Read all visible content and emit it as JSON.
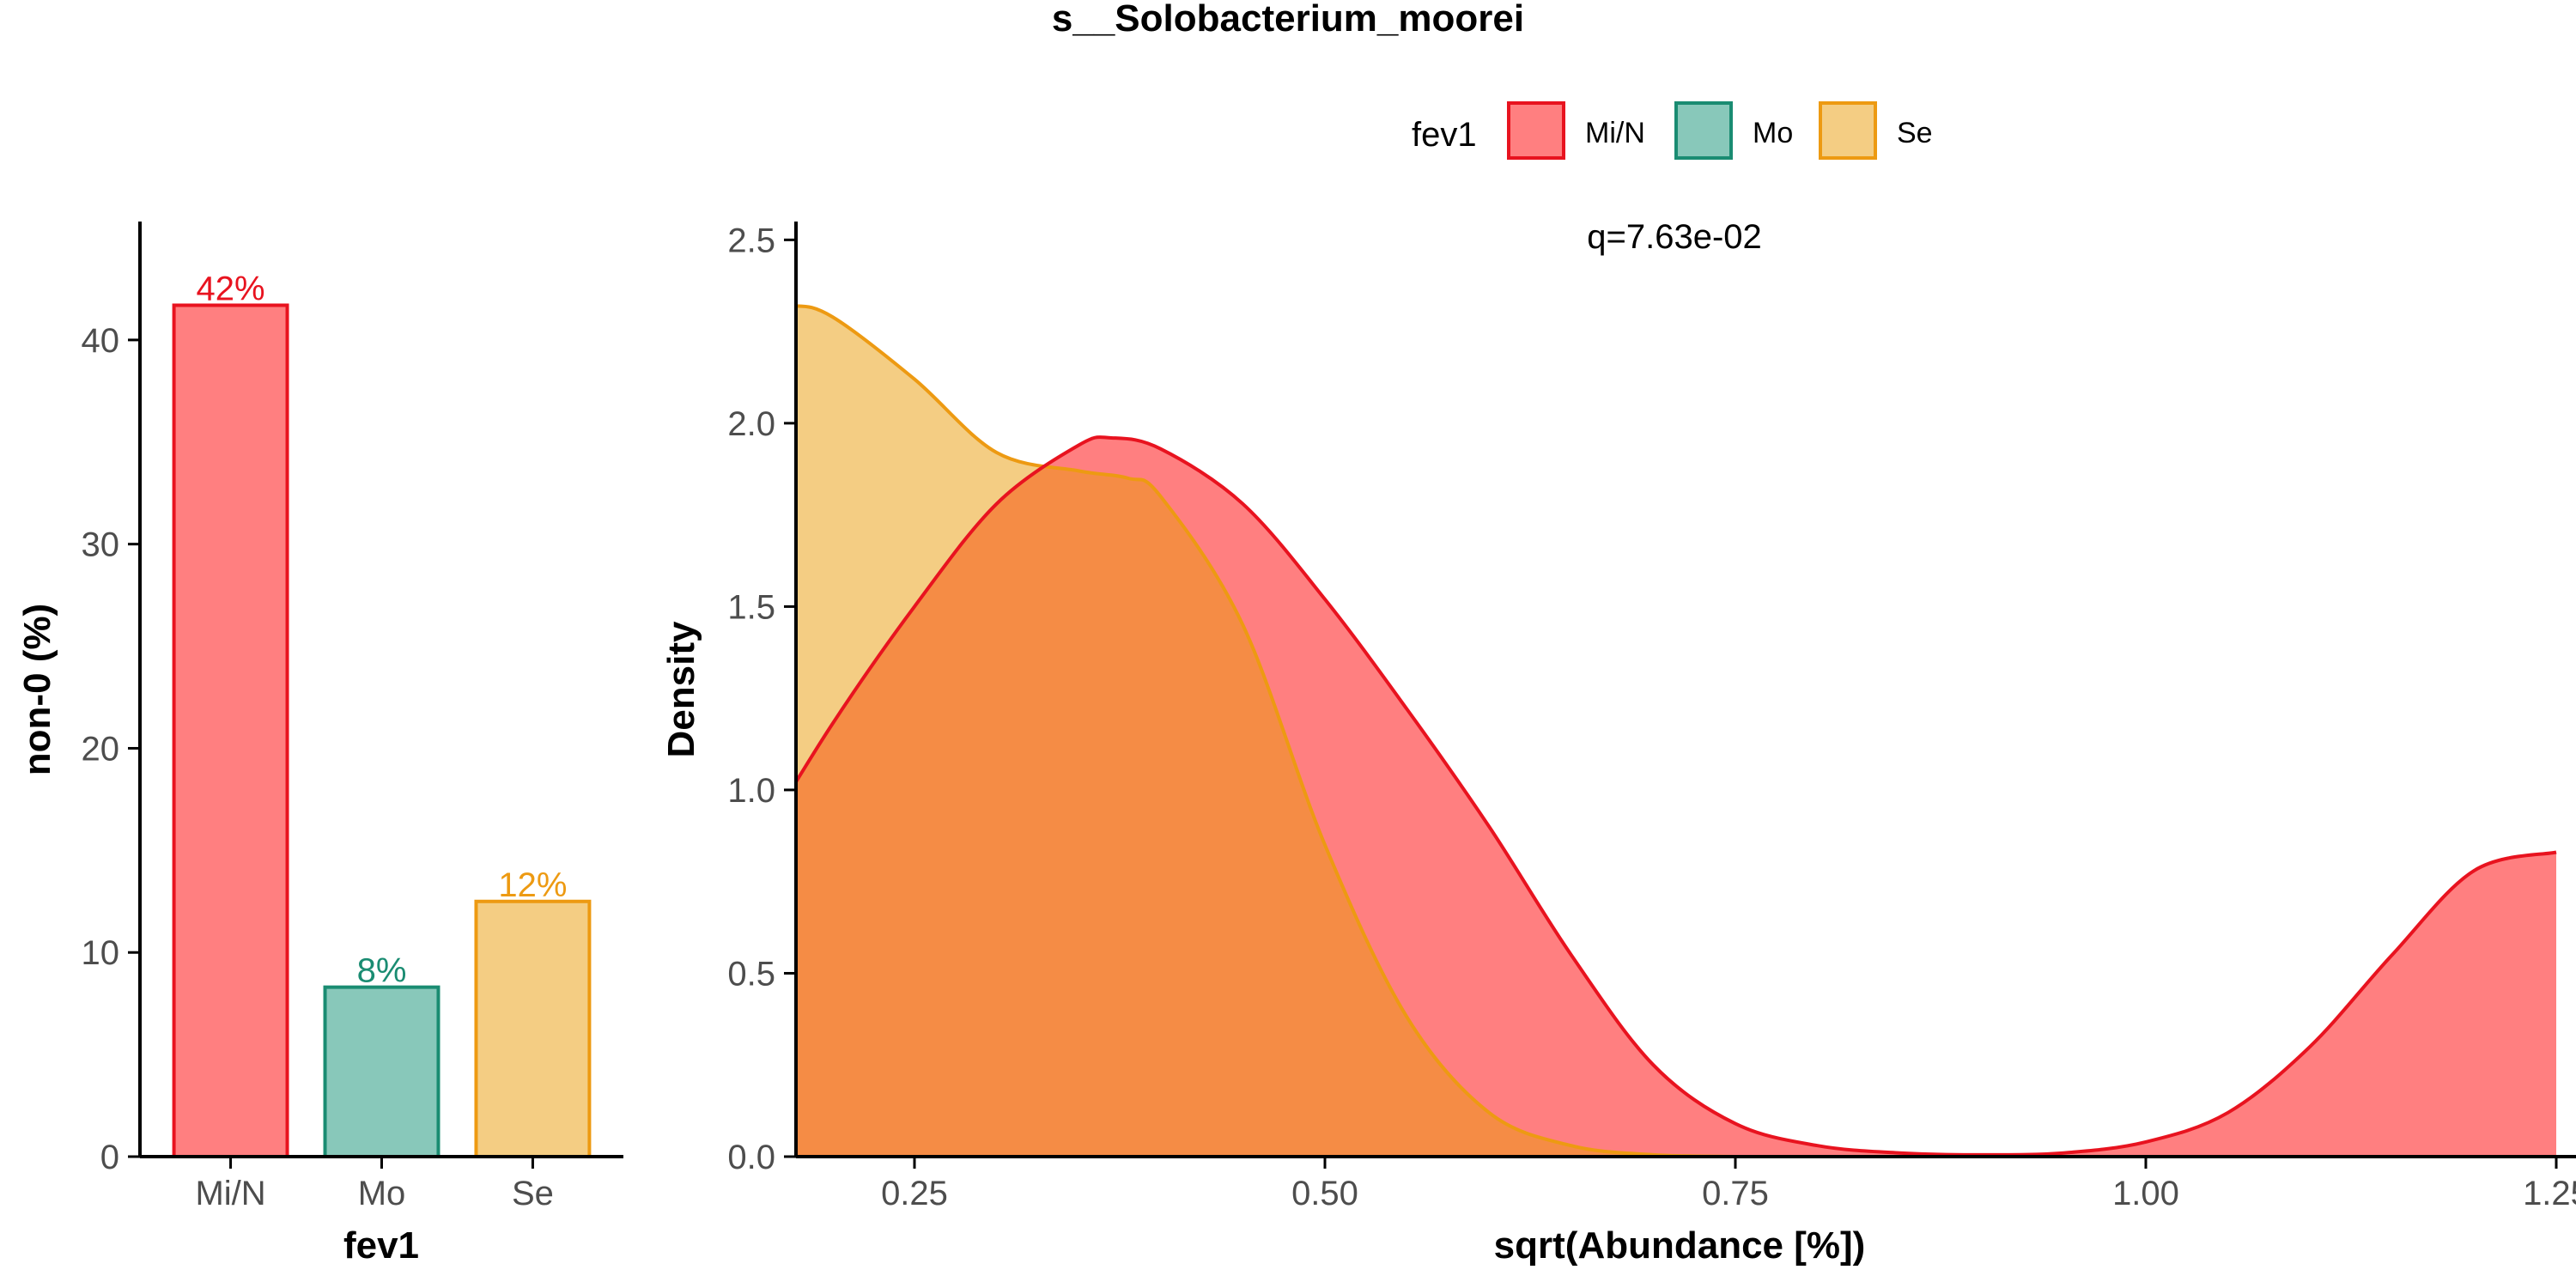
{
  "title": "s__Solobacterium_moorei",
  "legend": {
    "title": "fev1",
    "items": [
      {
        "label": "Mi/N",
        "fill": "#FF7F80",
        "stroke": "#E8131F"
      },
      {
        "label": "Mo",
        "fill": "#88C8BA",
        "stroke": "#1A8C72"
      },
      {
        "label": "Se",
        "fill": "#F4CD83",
        "stroke": "#ED9A12"
      }
    ]
  },
  "chart_data": [
    {
      "type": "bar",
      "xlabel": "fev1",
      "ylabel": "non-0 (%)",
      "categories": [
        "Mi/N",
        "Mo",
        "Se"
      ],
      "values": [
        41.7,
        8.3,
        12.5
      ],
      "data_labels": [
        "42%",
        "8%",
        "12%"
      ],
      "label_colors": [
        "#E8131F",
        "#1A8C72",
        "#ED9A12"
      ],
      "ylim": [
        0,
        45.8
      ],
      "yticks": [
        0,
        10,
        20,
        30,
        40
      ],
      "ytick_labels": [
        "0",
        "10",
        "20",
        "30",
        "40"
      ],
      "grid": false
    },
    {
      "type": "area",
      "xlabel": "sqrt(Abundance [%])",
      "ylabel": "Density",
      "annotation": "q=7.63e-02",
      "xlim": [
        0.1,
        1.25
      ],
      "ylim": [
        0,
        2.55
      ],
      "xticks": [
        0.25,
        0.5,
        0.75,
        1.0,
        1.25
      ],
      "xtick_labels": [
        "0.25",
        "0.50",
        "0.75",
        "1.00",
        "1.25"
      ],
      "yticks": [
        0,
        0.5,
        1.0,
        1.5,
        2.0,
        2.5
      ],
      "ytick_labels": [
        "0.0",
        "0.5",
        "1.0",
        "1.5",
        "2.0",
        "2.5"
      ],
      "grid": false,
      "series": [
        {
          "name": "Mi/N",
          "x": [
            0.1,
            0.15,
            0.2,
            0.25,
            0.3,
            0.35,
            0.37,
            0.4,
            0.45,
            0.5,
            0.55,
            0.6,
            0.65,
            0.7,
            0.75,
            0.8,
            0.85,
            0.9,
            0.95,
            1.0,
            1.05,
            1.1,
            1.15,
            1.2,
            1.25
          ],
          "y": [
            0.48,
            0.82,
            1.18,
            1.5,
            1.78,
            1.94,
            1.96,
            1.93,
            1.78,
            1.52,
            1.22,
            0.9,
            0.55,
            0.25,
            0.09,
            0.03,
            0.01,
            0.005,
            0.01,
            0.04,
            0.12,
            0.3,
            0.55,
            0.78,
            0.83
          ]
        },
        {
          "name": "Se",
          "x": [
            0.1,
            0.125,
            0.15,
            0.175,
            0.2,
            0.25,
            0.3,
            0.35,
            0.38,
            0.4,
            0.45,
            0.5,
            0.55,
            0.6,
            0.65,
            0.7,
            0.75
          ],
          "y": [
            2.03,
            2.22,
            2.3,
            2.32,
            2.29,
            2.12,
            1.92,
            1.87,
            1.85,
            1.8,
            1.45,
            0.85,
            0.38,
            0.12,
            0.03,
            0.005,
            0.0
          ]
        }
      ],
      "overlap_color": "#F58C45"
    }
  ]
}
